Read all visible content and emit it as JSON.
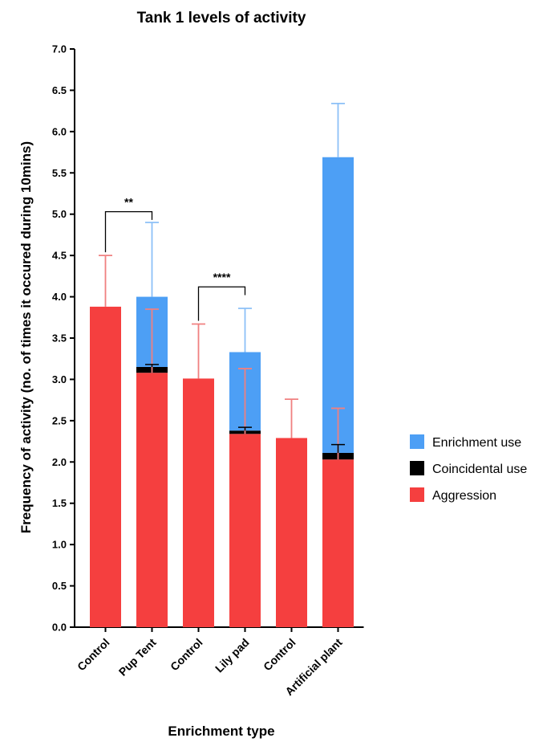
{
  "chart_data": {
    "type": "bar",
    "stacked": true,
    "title": "Tank 1 levels of activity",
    "xlabel": "Enrichment type",
    "ylabel": "Frequency of activity (no. of times it occured during 10mins)",
    "ylim": [
      0,
      7
    ],
    "ytick_step": 0.5,
    "yticks": [
      "0.0",
      "0.5",
      "1.0",
      "1.5",
      "2.0",
      "2.5",
      "3.0",
      "3.5",
      "4.0",
      "4.5",
      "5.0",
      "5.5",
      "6.0",
      "6.5",
      "7.0"
    ],
    "categories": [
      "Control",
      "Pup Tent",
      "Control",
      "Lily pad",
      "Control",
      "Artificial plant"
    ],
    "series": [
      {
        "name": "Aggression",
        "color": "#f53f3f",
        "values": [
          3.88,
          3.08,
          3.01,
          2.34,
          2.29,
          2.03
        ]
      },
      {
        "name": "Coincidental use",
        "color": "#000000",
        "values": [
          0,
          0.07,
          0,
          0.04,
          0,
          0.08
        ]
      },
      {
        "name": "Enrichment use",
        "color": "#4d9ff5",
        "values": [
          0,
          0.85,
          0,
          0.95,
          0,
          3.58
        ]
      }
    ],
    "error_bars": [
      {
        "series": "Aggression",
        "category_index": 0,
        "center": 3.88,
        "upper": 4.5
      },
      {
        "series": "Aggression",
        "category_index": 1,
        "center": 3.08,
        "upper": 3.85
      },
      {
        "series": "Aggression",
        "category_index": 2,
        "center": 3.01,
        "upper": 3.67
      },
      {
        "series": "Aggression",
        "category_index": 3,
        "center": 2.34,
        "upper": 3.13
      },
      {
        "series": "Aggression",
        "category_index": 4,
        "center": 2.29,
        "upper": 2.76
      },
      {
        "series": "Aggression",
        "category_index": 5,
        "center": 2.03,
        "upper": 2.65
      },
      {
        "series": "Coincidental use",
        "category_index": 1,
        "center": 3.15,
        "upper": 3.18
      },
      {
        "series": "Coincidental use",
        "category_index": 3,
        "center": 2.38,
        "upper": 2.42
      },
      {
        "series": "Coincidental use",
        "category_index": 5,
        "center": 2.11,
        "upper": 2.21
      },
      {
        "series": "Enrichment use",
        "category_index": 1,
        "center": 4.0,
        "upper": 4.9
      },
      {
        "series": "Enrichment use",
        "category_index": 3,
        "center": 3.33,
        "upper": 3.86
      },
      {
        "series": "Enrichment use",
        "category_index": 5,
        "center": 5.69,
        "upper": 6.34
      }
    ],
    "significance": [
      {
        "from": 0,
        "to": 1,
        "label": "**",
        "level": 5.03
      },
      {
        "from": 2,
        "to": 3,
        "label": "****",
        "level": 4.12
      }
    ],
    "legend": {
      "position": "right",
      "entries": [
        {
          "label": "Enrichment use",
          "color": "#4d9ff5"
        },
        {
          "label": "Coincidental use",
          "color": "#000000"
        },
        {
          "label": "Aggression",
          "color": "#f53f3f"
        }
      ]
    }
  }
}
